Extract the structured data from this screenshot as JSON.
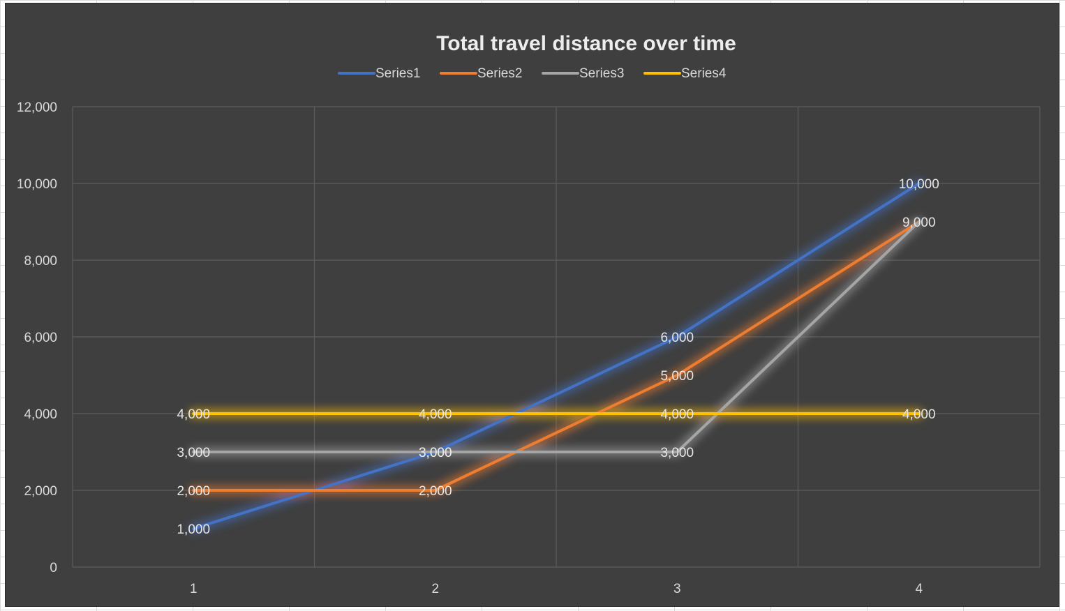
{
  "chart_data": {
    "type": "line",
    "title": "Total travel distance over time",
    "xlabel": "",
    "ylabel": "",
    "categories": [
      "1",
      "2",
      "3",
      "4"
    ],
    "ylim": [
      0,
      12000
    ],
    "yticks": [
      0,
      2000,
      4000,
      6000,
      8000,
      10000,
      12000
    ],
    "ytick_labels": [
      "0",
      "2,000",
      "4,000",
      "6,000",
      "8,000",
      "10,000",
      "12,000"
    ],
    "grid": true,
    "legend_position": "top",
    "series": [
      {
        "name": "Series1",
        "color": "#4472c4",
        "values": [
          1000,
          3000,
          6000,
          10000
        ],
        "labels": [
          "1,000",
          "3,000",
          "6,000",
          "10,000"
        ]
      },
      {
        "name": "Series2",
        "color": "#ed7d31",
        "values": [
          2000,
          2000,
          5000,
          9000
        ],
        "labels": [
          "2,000",
          "2,000",
          "5,000",
          "9,000"
        ]
      },
      {
        "name": "Series3",
        "color": "#a5a5a5",
        "values": [
          3000,
          3000,
          3000,
          9000
        ],
        "labels": [
          "3,000",
          "3,000",
          "3,000",
          ""
        ]
      },
      {
        "name": "Series4",
        "color": "#ffc000",
        "values": [
          4000,
          4000,
          4000,
          4000
        ],
        "labels": [
          "4,000",
          "4,000",
          "4,000",
          "4,000"
        ]
      }
    ]
  }
}
